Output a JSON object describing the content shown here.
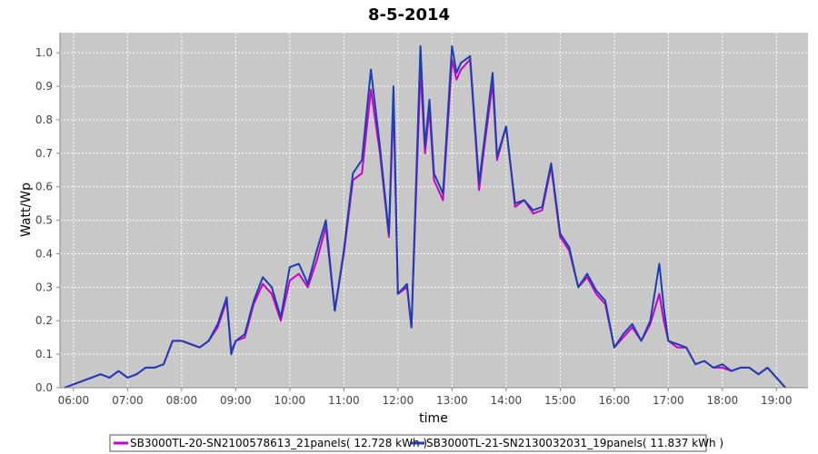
{
  "chart_data": {
    "type": "line",
    "title": "8-5-2014",
    "xlabel": "time",
    "ylabel": "Watt/Wp",
    "xlim": [
      "05:45",
      "19:35"
    ],
    "ylim": [
      0,
      1.06
    ],
    "x_ticks": [
      "06:00",
      "07:00",
      "08:00",
      "09:00",
      "10:00",
      "11:00",
      "12:00",
      "13:00",
      "14:00",
      "15:00",
      "16:00",
      "17:00",
      "18:00",
      "19:00"
    ],
    "y_ticks": [
      "0.0",
      "0.1",
      "0.2",
      "0.3",
      "0.4",
      "0.5",
      "0.6",
      "0.7",
      "0.8",
      "0.9",
      "1.0"
    ],
    "grid": true,
    "legend_position": "bottom",
    "background": "#c8c8c8",
    "series": [
      {
        "name": "SB3000TL-20-SN2100578613_21panels( 12.728 kWh )",
        "color": "#cc00cc",
        "points": [
          [
            "05:50",
            0.0
          ],
          [
            "06:00",
            0.01
          ],
          [
            "06:10",
            0.02
          ],
          [
            "06:20",
            0.03
          ],
          [
            "06:30",
            0.04
          ],
          [
            "06:40",
            0.03
          ],
          [
            "06:50",
            0.05
          ],
          [
            "07:00",
            0.03
          ],
          [
            "07:10",
            0.04
          ],
          [
            "07:20",
            0.06
          ],
          [
            "07:30",
            0.06
          ],
          [
            "07:40",
            0.07
          ],
          [
            "07:50",
            0.14
          ],
          [
            "08:00",
            0.14
          ],
          [
            "08:10",
            0.13
          ],
          [
            "08:20",
            0.12
          ],
          [
            "08:30",
            0.14
          ],
          [
            "08:40",
            0.18
          ],
          [
            "08:50",
            0.26
          ],
          [
            "08:55",
            0.11
          ],
          [
            "09:00",
            0.14
          ],
          [
            "09:10",
            0.15
          ],
          [
            "09:20",
            0.25
          ],
          [
            "09:30",
            0.31
          ],
          [
            "09:40",
            0.28
          ],
          [
            "09:50",
            0.2
          ],
          [
            "10:00",
            0.32
          ],
          [
            "10:10",
            0.34
          ],
          [
            "10:20",
            0.3
          ],
          [
            "10:30",
            0.38
          ],
          [
            "10:40",
            0.48
          ],
          [
            "10:50",
            0.23
          ],
          [
            "11:00",
            0.4
          ],
          [
            "11:10",
            0.62
          ],
          [
            "11:20",
            0.64
          ],
          [
            "11:30",
            0.89
          ],
          [
            "11:40",
            0.7
          ],
          [
            "11:50",
            0.45
          ],
          [
            "11:55",
            0.85
          ],
          [
            "12:00",
            0.28
          ],
          [
            "12:10",
            0.3
          ],
          [
            "12:15",
            0.18
          ],
          [
            "12:25",
            0.95
          ],
          [
            "12:30",
            0.7
          ],
          [
            "12:35",
            0.83
          ],
          [
            "12:40",
            0.62
          ],
          [
            "12:50",
            0.56
          ],
          [
            "13:00",
            0.98
          ],
          [
            "13:05",
            0.92
          ],
          [
            "13:10",
            0.95
          ],
          [
            "13:20",
            0.98
          ],
          [
            "13:30",
            0.59
          ],
          [
            "13:35",
            0.7
          ],
          [
            "13:45",
            0.91
          ],
          [
            "13:50",
            0.68
          ],
          [
            "14:00",
            0.78
          ],
          [
            "14:10",
            0.54
          ],
          [
            "14:20",
            0.56
          ],
          [
            "14:30",
            0.52
          ],
          [
            "14:40",
            0.53
          ],
          [
            "14:50",
            0.66
          ],
          [
            "15:00",
            0.45
          ],
          [
            "15:10",
            0.41
          ],
          [
            "15:20",
            0.3
          ],
          [
            "15:30",
            0.33
          ],
          [
            "15:40",
            0.28
          ],
          [
            "15:50",
            0.25
          ],
          [
            "16:00",
            0.12
          ],
          [
            "16:10",
            0.15
          ],
          [
            "16:20",
            0.18
          ],
          [
            "16:30",
            0.14
          ],
          [
            "16:40",
            0.19
          ],
          [
            "16:50",
            0.28
          ],
          [
            "16:55",
            0.2
          ],
          [
            "17:00",
            0.14
          ],
          [
            "17:10",
            0.12
          ],
          [
            "17:20",
            0.12
          ],
          [
            "17:30",
            0.07
          ],
          [
            "17:40",
            0.08
          ],
          [
            "17:50",
            0.06
          ],
          [
            "18:00",
            0.06
          ],
          [
            "18:10",
            0.05
          ],
          [
            "18:20",
            0.06
          ],
          [
            "18:30",
            0.06
          ],
          [
            "18:40",
            0.04
          ],
          [
            "18:50",
            0.06
          ],
          [
            "19:00",
            0.03
          ],
          [
            "19:10",
            0.0
          ]
        ]
      },
      {
        "name": "SB3000TL-21-SN2130032031_19panels( 11.837 kWh )",
        "color": "#1a3fb0",
        "points": [
          [
            "05:50",
            0.0
          ],
          [
            "06:00",
            0.01
          ],
          [
            "06:10",
            0.02
          ],
          [
            "06:20",
            0.03
          ],
          [
            "06:30",
            0.04
          ],
          [
            "06:40",
            0.03
          ],
          [
            "06:50",
            0.05
          ],
          [
            "07:00",
            0.03
          ],
          [
            "07:10",
            0.04
          ],
          [
            "07:20",
            0.06
          ],
          [
            "07:30",
            0.06
          ],
          [
            "07:40",
            0.07
          ],
          [
            "07:50",
            0.14
          ],
          [
            "08:00",
            0.14
          ],
          [
            "08:10",
            0.13
          ],
          [
            "08:20",
            0.12
          ],
          [
            "08:30",
            0.14
          ],
          [
            "08:40",
            0.19
          ],
          [
            "08:50",
            0.27
          ],
          [
            "08:55",
            0.1
          ],
          [
            "09:00",
            0.14
          ],
          [
            "09:10",
            0.16
          ],
          [
            "09:20",
            0.26
          ],
          [
            "09:30",
            0.33
          ],
          [
            "09:40",
            0.3
          ],
          [
            "09:50",
            0.21
          ],
          [
            "10:00",
            0.36
          ],
          [
            "10:10",
            0.37
          ],
          [
            "10:20",
            0.31
          ],
          [
            "10:30",
            0.41
          ],
          [
            "10:40",
            0.5
          ],
          [
            "10:50",
            0.23
          ],
          [
            "11:00",
            0.41
          ],
          [
            "11:10",
            0.64
          ],
          [
            "11:20",
            0.68
          ],
          [
            "11:30",
            0.95
          ],
          [
            "11:40",
            0.72
          ],
          [
            "11:50",
            0.46
          ],
          [
            "11:55",
            0.9
          ],
          [
            "12:00",
            0.28
          ],
          [
            "12:10",
            0.31
          ],
          [
            "12:15",
            0.18
          ],
          [
            "12:25",
            1.02
          ],
          [
            "12:30",
            0.72
          ],
          [
            "12:35",
            0.86
          ],
          [
            "12:40",
            0.64
          ],
          [
            "12:50",
            0.58
          ],
          [
            "13:00",
            1.02
          ],
          [
            "13:05",
            0.94
          ],
          [
            "13:10",
            0.97
          ],
          [
            "13:20",
            0.99
          ],
          [
            "13:30",
            0.61
          ],
          [
            "13:35",
            0.72
          ],
          [
            "13:45",
            0.94
          ],
          [
            "13:50",
            0.69
          ],
          [
            "14:00",
            0.78
          ],
          [
            "14:10",
            0.55
          ],
          [
            "14:20",
            0.56
          ],
          [
            "14:30",
            0.53
          ],
          [
            "14:40",
            0.54
          ],
          [
            "14:50",
            0.67
          ],
          [
            "15:00",
            0.46
          ],
          [
            "15:10",
            0.42
          ],
          [
            "15:20",
            0.3
          ],
          [
            "15:30",
            0.34
          ],
          [
            "15:40",
            0.29
          ],
          [
            "15:50",
            0.26
          ],
          [
            "16:00",
            0.12
          ],
          [
            "16:10",
            0.16
          ],
          [
            "16:20",
            0.19
          ],
          [
            "16:30",
            0.14
          ],
          [
            "16:40",
            0.2
          ],
          [
            "16:50",
            0.37
          ],
          [
            "16:55",
            0.24
          ],
          [
            "17:00",
            0.14
          ],
          [
            "17:10",
            0.13
          ],
          [
            "17:20",
            0.12
          ],
          [
            "17:30",
            0.07
          ],
          [
            "17:40",
            0.08
          ],
          [
            "17:50",
            0.06
          ],
          [
            "18:00",
            0.07
          ],
          [
            "18:10",
            0.05
          ],
          [
            "18:20",
            0.06
          ],
          [
            "18:30",
            0.06
          ],
          [
            "18:40",
            0.04
          ],
          [
            "18:50",
            0.06
          ],
          [
            "19:00",
            0.03
          ],
          [
            "19:10",
            0.0
          ]
        ]
      }
    ]
  }
}
